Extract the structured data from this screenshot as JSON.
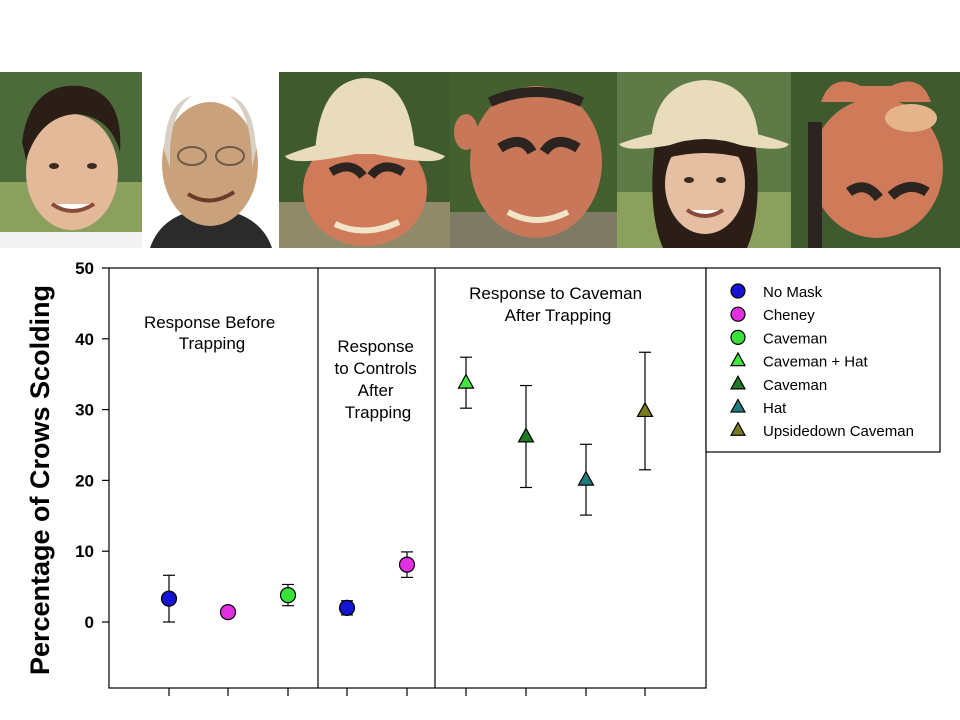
{
  "photos": [
    {
      "name": "photo-no-mask",
      "icon": "young-man-face",
      "colors": {
        "bg": "#4d6b3a",
        "skin": "#e3b99a",
        "hair": "#2a1e16"
      }
    },
    {
      "name": "photo-cheney",
      "icon": "cheney-face",
      "colors": {
        "bg": "#ffffff",
        "skin": "#c9a27c",
        "hair": "#d8d0c4"
      }
    },
    {
      "name": "photo-caveman-hat",
      "icon": "caveman-mask-with-hat",
      "colors": {
        "bg": "#3f5a2e",
        "skin": "#cf7b59",
        "hat": "#e8dcbc"
      }
    },
    {
      "name": "photo-caveman",
      "icon": "caveman-mask",
      "colors": {
        "bg": "#44602f",
        "skin": "#c87758",
        "hair": "#2b2420"
      }
    },
    {
      "name": "photo-hat",
      "icon": "woman-with-hat",
      "colors": {
        "bg": "#5d7a47",
        "skin": "#e6bfa3",
        "hat": "#e8dcbc"
      }
    },
    {
      "name": "photo-upsidedown-caveman",
      "icon": "upsidedown-caveman-mask",
      "colors": {
        "bg": "#3f5a2e",
        "skin": "#cf7b59",
        "hair": "#2b2420"
      }
    }
  ],
  "chart_data": {
    "type": "scatter",
    "ylabel": "Percentage of Crows Scolding",
    "xlabel": "",
    "ylim": [
      -10,
      50
    ],
    "yticks": [
      0,
      10,
      20,
      30,
      40,
      50
    ],
    "grid": false,
    "legend_position": "top-right",
    "panels": [
      {
        "label_lines": [
          "Response Before",
          "Trapping"
        ]
      },
      {
        "label_lines": [
          "Response",
          "to Controls",
          "After",
          "Trapping"
        ]
      },
      {
        "label_lines": [
          "Response to Caveman",
          "After Trapping"
        ]
      }
    ],
    "series": [
      {
        "name": "No Mask",
        "marker": "circle",
        "color": "#1414d2",
        "panel": 0,
        "y": 3.3,
        "err": 3.3
      },
      {
        "name": "Cheney",
        "marker": "circle",
        "color": "#e12fe1",
        "panel": 0,
        "y": 1.4,
        "err": 0.7
      },
      {
        "name": "Caveman",
        "marker": "circle",
        "color": "#38e23a",
        "panel": 0,
        "y": 3.8,
        "err": 1.5
      },
      {
        "name": "No Mask",
        "marker": "circle",
        "color": "#1414d2",
        "panel": 1,
        "y": 2.0,
        "err": 1.0
      },
      {
        "name": "Cheney",
        "marker": "circle",
        "color": "#e12fe1",
        "panel": 1,
        "y": 8.1,
        "err": 1.8
      },
      {
        "name": "Caveman + Hat",
        "marker": "triangle",
        "color": "#3ee63e",
        "panel": 2,
        "y": 33.8,
        "err": 3.6
      },
      {
        "name": "Caveman",
        "marker": "triangle",
        "color": "#1f7a25",
        "panel": 2,
        "y": 26.2,
        "err": 7.2
      },
      {
        "name": "Hat",
        "marker": "triangle",
        "color": "#1f7a7a",
        "panel": 2,
        "y": 20.1,
        "err": 5.0
      },
      {
        "name": "Upsidedown Caveman",
        "marker": "triangle",
        "color": "#7a7a1f",
        "panel": 2,
        "y": 29.8,
        "err": 8.3
      }
    ],
    "legend": [
      {
        "name": "No Mask",
        "marker": "circle",
        "color": "#1414d2"
      },
      {
        "name": "Cheney",
        "marker": "circle",
        "color": "#e12fe1"
      },
      {
        "name": "Caveman",
        "marker": "circle",
        "color": "#38e23a"
      },
      {
        "name": "Caveman + Hat",
        "marker": "triangle",
        "color": "#3ee63e"
      },
      {
        "name": "Caveman",
        "marker": "triangle",
        "color": "#1f7a25"
      },
      {
        "name": "Hat",
        "marker": "triangle",
        "color": "#1f7a7a"
      },
      {
        "name": "Upsidedown Caveman",
        "marker": "triangle",
        "color": "#7a7a1f"
      }
    ]
  }
}
